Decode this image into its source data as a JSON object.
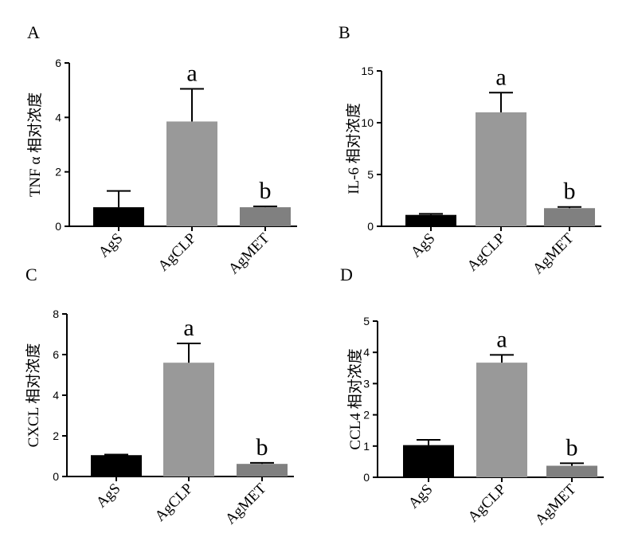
{
  "figure": {
    "background": "#ffffff"
  },
  "series_colors": [
    "#000000",
    "#999999",
    "#808080"
  ],
  "chart_data": [
    {
      "panel": "A",
      "type": "bar",
      "ylabel": "TNF α 相对浓度",
      "categories": [
        "AgS",
        "AgCLP",
        "AgMET"
      ],
      "values": [
        0.7,
        3.85,
        0.7
      ],
      "errors": [
        0.6,
        1.2,
        0.03
      ],
      "ylim": [
        0,
        6
      ],
      "yticks": [
        "0",
        "2",
        "4",
        "6"
      ],
      "annotations": [
        "",
        "a",
        "b"
      ]
    },
    {
      "panel": "B",
      "type": "bar",
      "ylabel": "IL-6 相对浓度",
      "categories": [
        "AgS",
        "AgCLP",
        "AgMET"
      ],
      "values": [
        1.1,
        11.0,
        1.75
      ],
      "errors": [
        0.1,
        1.9,
        0.12
      ],
      "ylim": [
        0,
        15
      ],
      "yticks": [
        "0",
        "5",
        "10",
        "15"
      ],
      "annotations": [
        "",
        "a",
        "b"
      ]
    },
    {
      "panel": "C",
      "type": "bar",
      "ylabel": "CXCL 相对浓度",
      "categories": [
        "AgS",
        "AgCLP",
        "AgMET"
      ],
      "values": [
        1.05,
        5.6,
        0.62
      ],
      "errors": [
        0.03,
        0.95,
        0.05
      ],
      "ylim": [
        0,
        8
      ],
      "yticks": [
        "0",
        "2",
        "4",
        "6",
        "8"
      ],
      "annotations": [
        "",
        "a",
        "b"
      ]
    },
    {
      "panel": "D",
      "type": "bar",
      "ylabel": "CCL4 相对浓度",
      "categories": [
        "AgS",
        "AgCLP",
        "AgMET"
      ],
      "values": [
        1.03,
        3.67,
        0.37
      ],
      "errors": [
        0.17,
        0.25,
        0.08
      ],
      "ylim": [
        0,
        5
      ],
      "yticks": [
        "0",
        "1",
        "2",
        "3",
        "4",
        "5"
      ],
      "annotations": [
        "",
        "a",
        "b"
      ]
    }
  ]
}
